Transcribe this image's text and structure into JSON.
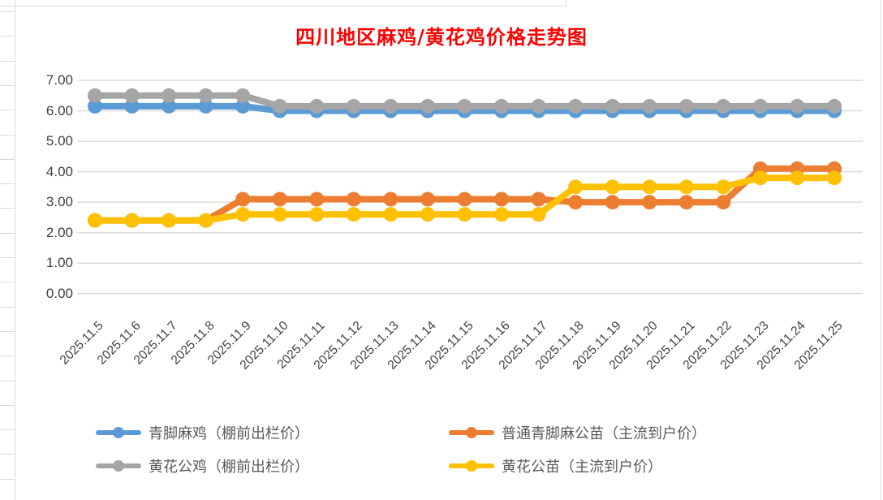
{
  "chart_data": {
    "type": "line",
    "title": "四川地区麻鸡/黄花鸡价格走势图",
    "title_color": "#ff0000",
    "xlabel": "",
    "ylabel": "",
    "ylim": [
      0,
      7
    ],
    "y_tick_step": 1,
    "y_tick_labels": [
      "0.00",
      "1.00",
      "2.00",
      "3.00",
      "4.00",
      "5.00",
      "6.00",
      "7.00"
    ],
    "grid": true,
    "gridline_color": "#d9d9d9",
    "legend_position": "bottom",
    "categories": [
      "2025.11.5",
      "2025.11.6",
      "2025.11.7",
      "2025.11.8",
      "2025.11.9",
      "2025.11.10",
      "2025.11.11",
      "2025.11.12",
      "2025.11.13",
      "2025.11.14",
      "2025.11.15",
      "2025.11.16",
      "2025.11.17",
      "2025.11.18",
      "2025.11.19",
      "2025.11.20",
      "2025.11.21",
      "2025.11.22",
      "2025.11.23",
      "2025.11.24",
      "2025.11.25"
    ],
    "series": [
      {
        "name": "青脚麻鸡（棚前出栏价）",
        "color": "#5B9BD5",
        "values": [
          6.15,
          6.15,
          6.15,
          6.15,
          6.15,
          6.0,
          6.0,
          6.0,
          6.0,
          6.0,
          6.0,
          6.0,
          6.0,
          6.0,
          6.0,
          6.0,
          6.0,
          6.0,
          6.0,
          6.0,
          6.0
        ]
      },
      {
        "name": "普通青脚麻公苗（主流到户价）",
        "color": "#ED7D31",
        "values": [
          2.4,
          2.4,
          2.4,
          2.4,
          3.1,
          3.1,
          3.1,
          3.1,
          3.1,
          3.1,
          3.1,
          3.1,
          3.1,
          3.0,
          3.0,
          3.0,
          3.0,
          3.0,
          4.1,
          4.1,
          4.1
        ]
      },
      {
        "name": "黄花公鸡（棚前出栏价）",
        "color": "#A5A5A5",
        "values": [
          6.5,
          6.5,
          6.5,
          6.5,
          6.5,
          6.15,
          6.15,
          6.15,
          6.15,
          6.15,
          6.15,
          6.15,
          6.15,
          6.15,
          6.15,
          6.15,
          6.15,
          6.15,
          6.15,
          6.15,
          6.15
        ]
      },
      {
        "name": "黄花公苗（主流到户价）",
        "color": "#FFC000",
        "values": [
          2.4,
          2.4,
          2.4,
          2.4,
          2.6,
          2.6,
          2.6,
          2.6,
          2.6,
          2.6,
          2.6,
          2.6,
          2.6,
          3.5,
          3.5,
          3.5,
          3.5,
          3.5,
          3.8,
          3.8,
          3.8
        ]
      }
    ]
  }
}
